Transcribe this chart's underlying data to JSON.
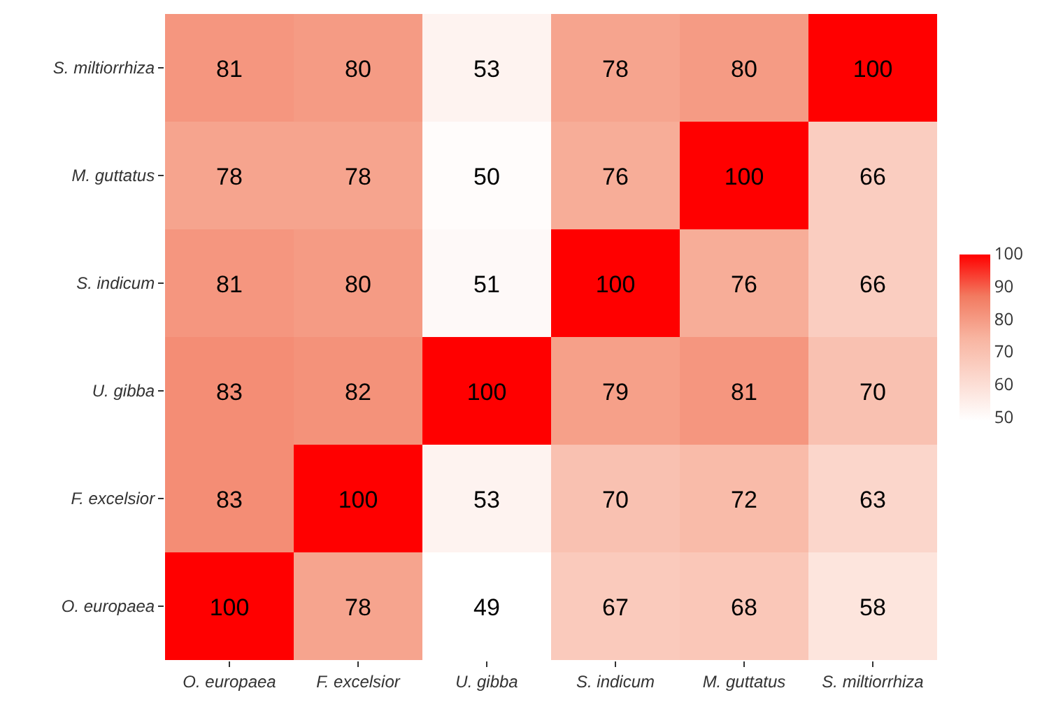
{
  "chart_data": {
    "type": "heatmap",
    "categories": [
      "O. europaea",
      "F. excelsior",
      "U. gibba",
      "S. indicum",
      "M. guttatus",
      "S. miltiorrhiza"
    ],
    "y_categories": [
      "S. miltiorrhiza",
      "M. guttatus",
      "S. indicum",
      "U. gibba",
      "F. excelsior",
      "O. europaea"
    ],
    "cells": [
      [
        81,
        80,
        53,
        78,
        80,
        100
      ],
      [
        78,
        78,
        50,
        76,
        100,
        66
      ],
      [
        81,
        80,
        51,
        100,
        76,
        66
      ],
      [
        83,
        82,
        100,
        79,
        81,
        70
      ],
      [
        83,
        100,
        53,
        70,
        72,
        63
      ],
      [
        100,
        78,
        49,
        67,
        68,
        58
      ]
    ],
    "data_labels": true,
    "clim": [
      49,
      100
    ],
    "cticks": [
      50,
      60,
      70,
      80,
      90,
      100
    ]
  }
}
